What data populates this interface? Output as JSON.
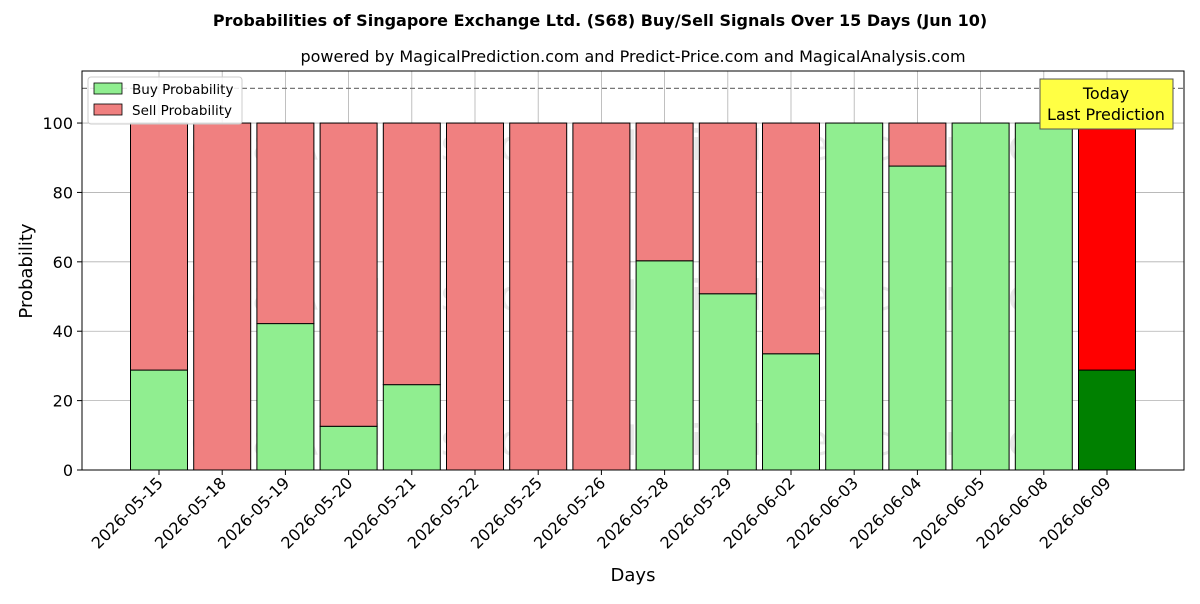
{
  "chart_data": {
    "type": "bar",
    "stacked": true,
    "title": "Probabilities of Singapore Exchange Ltd. (S68) Buy/Sell Signals Over 15 Days (Jun 10)",
    "subtitle": "powered by MagicalPrediction.com and Predict-Price.com and MagicalAnalysis.com",
    "xlabel": "Days",
    "ylabel": "Probability",
    "ylim": [
      0,
      115
    ],
    "yticks": [
      0,
      20,
      40,
      60,
      80,
      100
    ],
    "grid": true,
    "legend_position": "top-left",
    "reference_line": 110,
    "categories": [
      "2026-05-15",
      "2026-05-18",
      "2026-05-19",
      "2026-05-20",
      "2026-05-21",
      "2026-05-22",
      "2026-05-25",
      "2026-05-26",
      "2026-05-28",
      "2026-05-29",
      "2026-06-02",
      "2026-06-03",
      "2026-06-04",
      "2026-06-05",
      "2026-06-08",
      "2026-06-09"
    ],
    "series": [
      {
        "name": "Buy Probability",
        "color": "#90ee90",
        "values": [
          28.8,
          0,
          42.2,
          12.6,
          24.6,
          0,
          0,
          0,
          60.3,
          50.8,
          33.5,
          100,
          87.6,
          100,
          100,
          28.8
        ]
      },
      {
        "name": "Sell Probability",
        "color": "#f08080",
        "values": [
          71.2,
          100,
          57.8,
          87.4,
          75.4,
          100,
          100,
          100,
          39.7,
          49.2,
          66.5,
          0,
          12.4,
          0,
          0,
          71.2
        ]
      }
    ],
    "highlight": {
      "index": 15,
      "buy_color": "#008000",
      "sell_color": "#ff0000",
      "label_line1": "Today",
      "label_line2": "Last Prediction"
    },
    "watermarks": [
      "MagicalAnalysis.com",
      "MagicalPrediction.com"
    ]
  }
}
